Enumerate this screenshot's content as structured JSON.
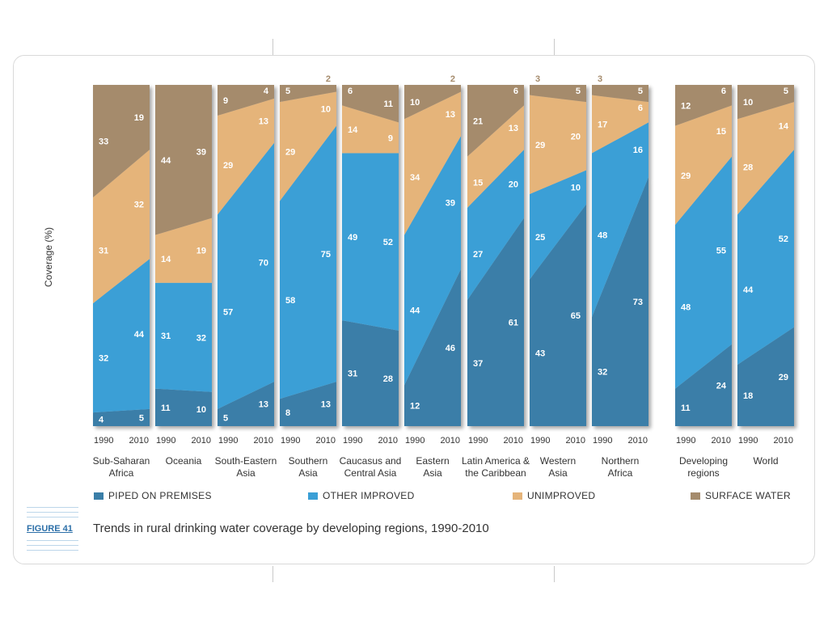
{
  "figure": {
    "tag": "FIGURE 41",
    "caption": "Trends in rural drinking water coverage by developing regions, 1990-2010"
  },
  "colors": {
    "piped": "#3a7ea8",
    "other": "#3a9fd6",
    "unimproved": "#e5b47a",
    "surface": "#a58b6c"
  },
  "legend": {
    "piped": "PIPED ON PREMISES",
    "other": "OTHER IMPROVED",
    "unimproved": "UNIMPROVED",
    "surface": "SURFACE WATER"
  },
  "chart_data": {
    "type": "area",
    "subtype": "stacked-percent-slope",
    "ylabel": "Coverage (%)",
    "ylim": [
      0,
      100
    ],
    "years": [
      "1990",
      "2010"
    ],
    "categories": [
      "PIPED ON PREMISES",
      "OTHER IMPROVED",
      "UNIMPROVED",
      "SURFACE WATER"
    ],
    "regions": [
      {
        "name": "Sub-Saharan\nAfrica",
        "y1990": [
          4,
          32,
          31,
          33
        ],
        "y2010": [
          5,
          44,
          32,
          19
        ]
      },
      {
        "name": "Oceania",
        "y1990": [
          11,
          31,
          14,
          44
        ],
        "y2010": [
          10,
          32,
          19,
          39
        ]
      },
      {
        "name": "South-Eastern\nAsia",
        "y1990": [
          5,
          57,
          29,
          9
        ],
        "y2010": [
          13,
          70,
          13,
          4
        ]
      },
      {
        "name": "Southern\nAsia",
        "y1990": [
          8,
          58,
          29,
          5
        ],
        "y2010": [
          13,
          75,
          10,
          2
        ]
      },
      {
        "name": "Caucasus and\nCentral Asia",
        "y1990": [
          31,
          49,
          14,
          6
        ],
        "y2010": [
          28,
          52,
          9,
          11
        ]
      },
      {
        "name": "Eastern\nAsia",
        "y1990": [
          12,
          44,
          34,
          10
        ],
        "y2010": [
          46,
          39,
          13,
          2
        ]
      },
      {
        "name": "Latin America &\nthe Caribbean",
        "y1990": [
          37,
          27,
          15,
          21
        ],
        "y2010": [
          61,
          20,
          13,
          6
        ]
      },
      {
        "name": "Western\nAsia",
        "y1990": [
          43,
          25,
          29,
          3
        ],
        "y2010": [
          65,
          10,
          20,
          5
        ]
      },
      {
        "name": "Northern\nAfrica",
        "y1990": [
          32,
          48,
          17,
          3
        ],
        "y2010": [
          73,
          16,
          6,
          5
        ]
      },
      {
        "name": "Developing\nregions",
        "y1990": [
          11,
          48,
          29,
          12
        ],
        "y2010": [
          24,
          55,
          15,
          6
        ]
      },
      {
        "name": "World",
        "y1990": [
          18,
          44,
          28,
          10
        ],
        "y2010": [
          29,
          52,
          14,
          5
        ]
      }
    ]
  }
}
